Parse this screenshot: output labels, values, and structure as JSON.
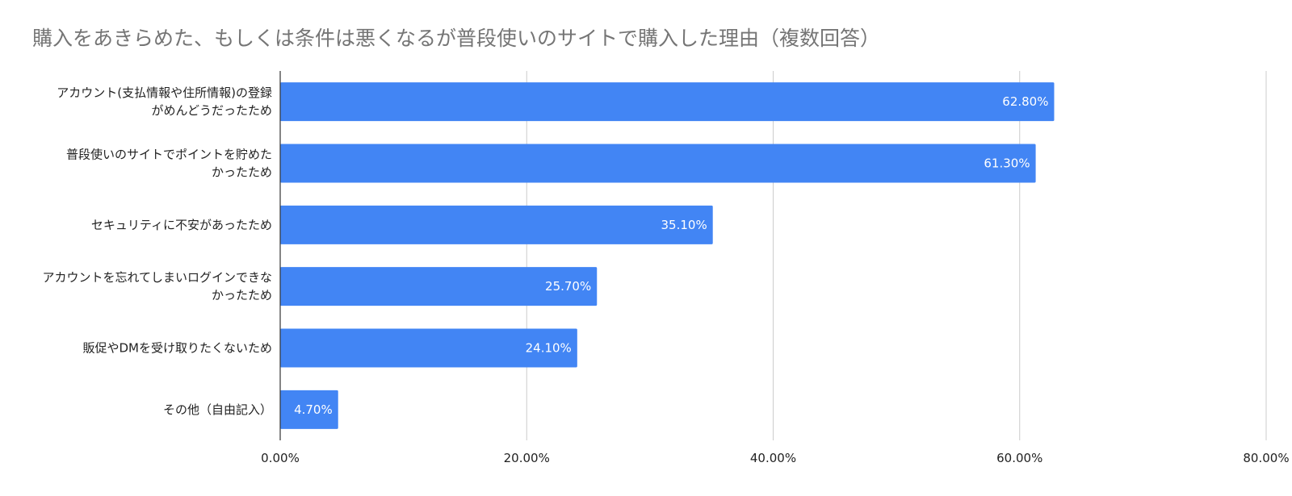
{
  "chart_data": {
    "type": "bar",
    "orientation": "horizontal",
    "title": "購入をあきらめた、もしくは条件は悪くなるが普段使いのサイトで購入した理由（複数回答）",
    "categories": [
      [
        "アカウント(支払情報や住所情報)の登録",
        "がめんどうだったため"
      ],
      [
        "普段使いのサイトでポイントを貯めた",
        "かったため"
      ],
      [
        "セキュリティに不安があったため"
      ],
      [
        "アカウントを忘れてしまいログインできな",
        "かったため"
      ],
      [
        "販促やDMを受け取りたくないため"
      ],
      [
        "その他（自由記入）"
      ]
    ],
    "values": [
      62.8,
      61.3,
      35.1,
      25.7,
      24.1,
      4.7
    ],
    "data_labels": [
      "62.80%",
      "61.30%",
      "35.10%",
      "25.70%",
      "24.10%",
      "4.70%"
    ],
    "xlim": [
      0,
      80
    ],
    "xticks": [
      0,
      20,
      40,
      60,
      80
    ],
    "xtick_labels": [
      "0.00%",
      "20.00%",
      "40.00%",
      "60.00%",
      "80.00%"
    ],
    "xlabel": "",
    "ylabel": "",
    "grid": "vertical",
    "legend": "none",
    "bar_color": "#4285f4",
    "grid_color": "#cccccc",
    "axis_color": "#333333"
  }
}
